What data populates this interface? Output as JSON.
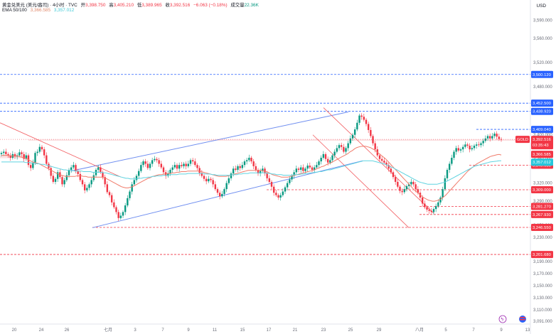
{
  "header": {
    "symbol": "黄金兑美元 (美元/盎司) · 4小时 · TVC",
    "open_label": "开",
    "open": "3,398.750",
    "high_label": "高",
    "high": "3,405.210",
    "low_label": "低",
    "low": "3,389.965",
    "close_label": "收",
    "close": "3,392.516",
    "change": "−6.063 (−0.18%)",
    "volume_label": "成交量",
    "volume": "22.36K",
    "ema_label": "EMA 50/100",
    "ema_fast": "3,366.585",
    "ema_slow": "3,357.012"
  },
  "currency": "USD",
  "colors": {
    "up": "#089981",
    "down": "#f23645",
    "ema_fast": "#f07b6a",
    "ema_slow": "#5fd3e0",
    "channel": "#6f8ef0",
    "red_channel": "#f25d61",
    "blue_level": "#2962ff",
    "red_level": "#f23645"
  },
  "icons": [
    "settings-icon",
    "flag-icon"
  ],
  "chart_data": {
    "type": "candlestick",
    "ylim": [
      3091,
      3600
    ],
    "y_ticks": [
      3590,
      3560,
      3520,
      3480,
      3440,
      3400,
      3360,
      3320,
      3290,
      3250,
      3230,
      3190,
      3170,
      3150,
      3130,
      3110,
      3091
    ],
    "y_tick_labels": [
      "3,590.000",
      "3,560.000",
      "3,520.000",
      "3,480.000",
      "3,440.000",
      "3,400.000",
      "3,360.000",
      "3,320.000",
      "3,290.000",
      "3,250.000",
      "3,230.000",
      "3,190.000",
      "3,170.000",
      "3,150.000",
      "3,130.000",
      "3,110.000",
      "3,091.000"
    ],
    "x_ticks": [
      "20",
      "24",
      "26",
      "七月",
      "3",
      "7",
      "9",
      "11",
      "15",
      "17",
      "21",
      "23",
      "25",
      "29",
      "八月",
      "5",
      "7",
      "9",
      "13"
    ],
    "closes": [
      3370,
      3372,
      3368,
      3366,
      3362,
      3368,
      3364,
      3366,
      3371,
      3368,
      3360,
      3366,
      3350,
      3345,
      3354,
      3370,
      3372,
      3380,
      3376,
      3366,
      3352,
      3345,
      3332,
      3322,
      3327,
      3338,
      3330,
      3318,
      3325,
      3333,
      3342,
      3346,
      3350,
      3340,
      3335,
      3325,
      3318,
      3308,
      3312,
      3318,
      3325,
      3333,
      3342,
      3346,
      3338,
      3330,
      3318,
      3305,
      3300,
      3288,
      3280,
      3272,
      3262,
      3266,
      3272,
      3283,
      3295,
      3306,
      3318,
      3325,
      3332,
      3340,
      3350,
      3356,
      3352,
      3345,
      3352,
      3358,
      3360,
      3358,
      3352,
      3346,
      3338,
      3332,
      3336,
      3342,
      3346,
      3350,
      3344,
      3350,
      3348,
      3352,
      3348,
      3352,
      3358,
      3356,
      3350,
      3345,
      3337,
      3332,
      3327,
      3323,
      3327,
      3325,
      3318,
      3310,
      3304,
      3298,
      3302,
      3310,
      3320,
      3328,
      3336,
      3344,
      3342,
      3348,
      3345,
      3350,
      3356,
      3358,
      3362,
      3356,
      3348,
      3342,
      3336,
      3340,
      3344,
      3336,
      3328,
      3322,
      3314,
      3304,
      3300,
      3296,
      3300,
      3306,
      3313,
      3320,
      3326,
      3332,
      3338,
      3344,
      3342,
      3346,
      3340,
      3344,
      3349,
      3346,
      3342,
      3346,
      3350,
      3356,
      3362,
      3368,
      3360,
      3354,
      3358,
      3366,
      3372,
      3378,
      3383,
      3380,
      3372,
      3378,
      3386,
      3394,
      3400,
      3409,
      3420,
      3432,
      3430,
      3425,
      3418,
      3408,
      3398,
      3386,
      3376,
      3366,
      3360,
      3357,
      3354,
      3350,
      3344,
      3338,
      3330,
      3322,
      3314,
      3307,
      3305,
      3310,
      3315,
      3318,
      3322,
      3318,
      3310,
      3304,
      3296,
      3286,
      3280,
      3276,
      3274,
      3272,
      3277,
      3282,
      3288,
      3296,
      3310,
      3328,
      3342,
      3352,
      3362,
      3372,
      3378,
      3374,
      3376,
      3380,
      3384,
      3382,
      3376,
      3378,
      3382,
      3384,
      3383,
      3386,
      3390,
      3394,
      3398,
      3394,
      3398,
      3402,
      3397,
      3393,
      3392.516
    ],
    "ema_fast": [
      3366,
      3366,
      3366,
      3366,
      3365,
      3365,
      3365,
      3365,
      3364,
      3363,
      3362,
      3361,
      3359,
      3357,
      3355,
      3354,
      3353,
      3352,
      3350,
      3348,
      3346,
      3344,
      3342,
      3340,
      3338,
      3336,
      3334,
      3333,
      3332,
      3331,
      3331,
      3331,
      3331,
      3331,
      3332,
      3332,
      3332,
      3331,
      3331,
      3330,
      3330,
      3330,
      3330,
      3330,
      3330,
      3330,
      3329,
      3328,
      3326,
      3324,
      3322,
      3320,
      3318,
      3316,
      3314,
      3313,
      3312,
      3312,
      3313,
      3314,
      3316,
      3318,
      3320,
      3322,
      3324,
      3326,
      3328,
      3329,
      3331,
      3332,
      3333,
      3334,
      3334,
      3335,
      3335,
      3336,
      3336,
      3337,
      3337,
      3338,
      3338,
      3339,
      3339,
      3339,
      3340,
      3340,
      3340,
      3340,
      3340,
      3340,
      3339,
      3338,
      3337,
      3336,
      3335,
      3334,
      3333,
      3332,
      3331,
      3331,
      3331,
      3331,
      3332,
      3333,
      3334,
      3335,
      3336,
      3337,
      3338,
      3339,
      3340,
      3341,
      3341,
      3341,
      3341,
      3341,
      3341,
      3341,
      3340,
      3339,
      3338,
      3336,
      3334,
      3333,
      3332,
      3331,
      3330,
      3330,
      3330,
      3330,
      3331,
      3332,
      3333,
      3334,
      3335,
      3336,
      3337,
      3338,
      3339,
      3340,
      3341,
      3342,
      3344,
      3345,
      3347,
      3348,
      3350,
      3352,
      3353,
      3355,
      3357,
      3359,
      3361,
      3363,
      3365,
      3367,
      3369,
      3372,
      3374,
      3377,
      3379,
      3380,
      3381,
      3381,
      3381,
      3380,
      3379,
      3377,
      3375,
      3372,
      3369,
      3366,
      3363,
      3360,
      3356,
      3352,
      3348,
      3344,
      3340,
      3336,
      3332,
      3328,
      3324,
      3320,
      3316,
      3312,
      3308,
      3305,
      3302,
      3299,
      3296,
      3294,
      3292,
      3291,
      3290,
      3290,
      3291,
      3292,
      3294,
      3297,
      3300,
      3304,
      3308,
      3312,
      3316,
      3320,
      3324,
      3328,
      3332,
      3336,
      3340,
      3343,
      3346,
      3349,
      3352,
      3354,
      3356,
      3358,
      3360,
      3362,
      3364,
      3365,
      3366,
      3367,
      3367.5,
      3366.585
    ],
    "ema_slow": [
      3355,
      3355,
      3355,
      3355,
      3355,
      3355,
      3355,
      3355,
      3355,
      3355,
      3355,
      3354,
      3354,
      3354,
      3353,
      3353,
      3352,
      3352,
      3351,
      3351,
      3350,
      3349,
      3348,
      3347,
      3346,
      3345,
      3344,
      3343,
      3342,
      3342,
      3341,
      3341,
      3341,
      3340,
      3340,
      3340,
      3340,
      3339,
      3339,
      3339,
      3339,
      3338,
      3338,
      3338,
      3338,
      3338,
      3337,
      3337,
      3336,
      3335,
      3334,
      3333,
      3332,
      3331,
      3330,
      3329,
      3328,
      3328,
      3327,
      3327,
      3327,
      3327,
      3328,
      3328,
      3329,
      3329,
      3330,
      3330,
      3331,
      3331,
      3332,
      3332,
      3332,
      3333,
      3333,
      3333,
      3334,
      3334,
      3334,
      3334,
      3335,
      3335,
      3335,
      3335,
      3336,
      3336,
      3336,
      3336,
      3336,
      3336,
      3336,
      3336,
      3335,
      3335,
      3335,
      3334,
      3334,
      3333,
      3333,
      3333,
      3333,
      3333,
      3333,
      3333,
      3334,
      3334,
      3334,
      3335,
      3335,
      3336,
      3336,
      3336,
      3337,
      3337,
      3337,
      3337,
      3337,
      3337,
      3337,
      3337,
      3336,
      3336,
      3335,
      3335,
      3334,
      3334,
      3334,
      3333,
      3333,
      3333,
      3333,
      3333,
      3334,
      3334,
      3334,
      3335,
      3335,
      3336,
      3336,
      3337,
      3337,
      3338,
      3338,
      3339,
      3339,
      3340,
      3341,
      3342,
      3342,
      3343,
      3344,
      3345,
      3346,
      3347,
      3348,
      3349,
      3350,
      3351,
      3352,
      3353,
      3354,
      3355,
      3356,
      3357,
      3357,
      3357,
      3357,
      3357,
      3356,
      3355,
      3354,
      3353,
      3352,
      3351,
      3349,
      3347,
      3346,
      3344,
      3342,
      3340,
      3338,
      3336,
      3334,
      3332,
      3330,
      3328,
      3326,
      3324,
      3322,
      3321,
      3320,
      3319,
      3318,
      3318,
      3318,
      3318,
      3318,
      3319,
      3320,
      3321,
      3322,
      3324,
      3326,
      3328,
      3330,
      3332,
      3334,
      3336,
      3338,
      3340,
      3342,
      3344,
      3346,
      3348,
      3349,
      3350,
      3351,
      3352,
      3353,
      3354,
      3355,
      3355.5,
      3356,
      3356.5,
      3357,
      3357.012
    ],
    "levels": [
      {
        "value": 3500.12,
        "label": "3,500.120",
        "style": "blue"
      },
      {
        "value": 3452.5,
        "label": "3,452.500",
        "style": "blue"
      },
      {
        "value": 3438.92,
        "label": "3,438.920",
        "style": "blue"
      },
      {
        "value": 3409.04,
        "label": "3,409.040",
        "style": "blue"
      },
      {
        "value": 3349.63,
        "label": "3,349.630",
        "style": "red"
      },
      {
        "value": 3309.0,
        "label": "3,309.000",
        "style": "red"
      },
      {
        "value": 3281.27,
        "label": "3,281.270",
        "style": "red"
      },
      {
        "value": 3267.93,
        "label": "3,267.930",
        "style": "red"
      },
      {
        "value": 3246.55,
        "label": "3,246.550",
        "style": "red"
      },
      {
        "value": 3201.68,
        "label": "3,201.680",
        "style": "red"
      }
    ],
    "price_tag": {
      "symbol": "GOLD",
      "value": "3,392.516",
      "countdown": "03:35:43"
    },
    "ema_tags": [
      {
        "value": "3,366.585",
        "name": "ema_fast"
      },
      {
        "value": "3,357.012",
        "name": "ema_slow"
      }
    ]
  }
}
